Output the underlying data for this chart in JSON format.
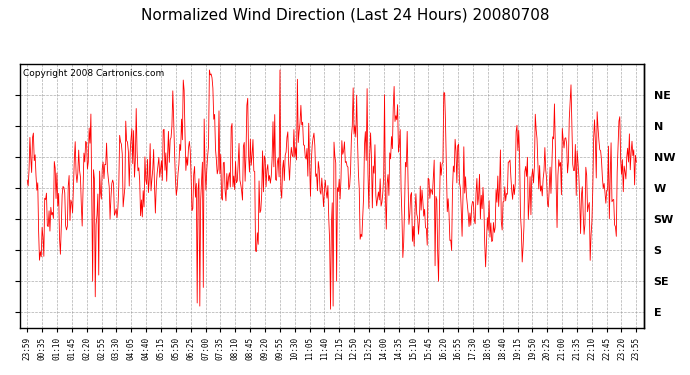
{
  "title": "Normalized Wind Direction (Last 24 Hours) 20080708",
  "copyright_text": "Copyright 2008 Cartronics.com",
  "line_color": "#FF0000",
  "background_color": "#FFFFFF",
  "plot_bg_color": "#FFFFFF",
  "grid_color": "#999999",
  "title_fontsize": 11,
  "ytick_labels_right": [
    "NE",
    "N",
    "NW",
    "W",
    "SW",
    "S",
    "SE",
    "E"
  ],
  "ytick_values": [
    7,
    6,
    5,
    4,
    3,
    2,
    1,
    0
  ],
  "ylim": [
    -0.5,
    8.0
  ],
  "xtick_labels": [
    "23:59",
    "00:35",
    "01:10",
    "01:45",
    "02:20",
    "02:55",
    "03:30",
    "04:05",
    "04:40",
    "05:15",
    "05:50",
    "06:25",
    "07:00",
    "07:35",
    "08:10",
    "08:45",
    "09:20",
    "09:55",
    "10:30",
    "11:05",
    "11:40",
    "12:15",
    "12:50",
    "13:25",
    "14:00",
    "14:35",
    "15:10",
    "15:45",
    "16:20",
    "16:55",
    "17:30",
    "18:05",
    "18:40",
    "19:15",
    "19:50",
    "20:25",
    "21:00",
    "21:35",
    "22:10",
    "22:45",
    "23:20",
    "23:55"
  ],
  "seed": 42,
  "n_points": 700
}
